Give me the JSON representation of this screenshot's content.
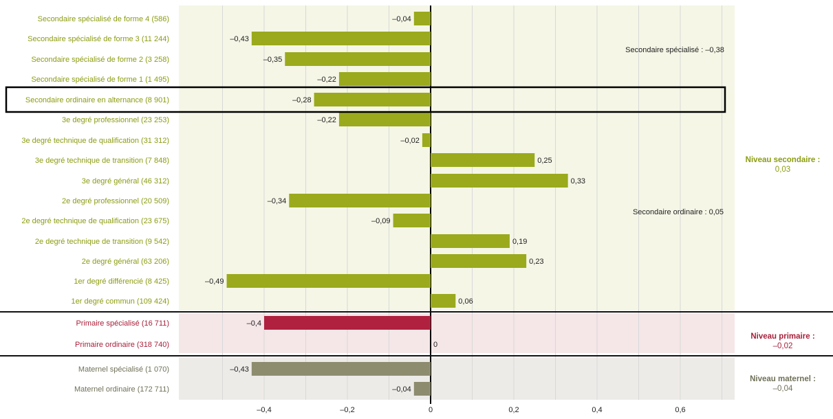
{
  "chart_data": {
    "type": "bar",
    "orientation": "horizontal",
    "xlim": [
      -0.5,
      0.72
    ],
    "x_ticks": [
      {
        "value": -0.4,
        "label": "–0,4"
      },
      {
        "value": -0.2,
        "label": "–0,2"
      },
      {
        "value": 0,
        "label": "0"
      },
      {
        "value": 0.2,
        "label": "0,2"
      },
      {
        "value": 0.4,
        "label": "0,4"
      },
      {
        "value": 0.6,
        "label": "0,6"
      }
    ],
    "grid": true,
    "categories": [
      "Secondaire spécialisé de forme 4 (586)",
      "Secondaire spécialisé de forme 3 (11 244)",
      "Secondaire spécialisé de forme 2 (3 258)",
      "Secondaire spécialisé de forme 1 (1 495)",
      "Secondaire ordinaire en alternance (8 901)",
      "3e degré professionnel (23 253)",
      "3e degré technique de qualification (31 312)",
      "3e degré technique de transition (7 848)",
      "3e degré général (46 312)",
      "2e degré professionnel (20 509)",
      "2e degré technique de qualification (23 675)",
      "2e degré technique de transition (9 542)",
      "2e degré général (63 206)",
      "1er degré différencié (8 425)",
      "1er degré commun (109 424)",
      "Primaire spécialisé (16 711)",
      "Primaire ordinaire (318 740)",
      "Maternel spécialisé (1 070)",
      "Maternel ordinaire (172 711)"
    ],
    "values": [
      -0.04,
      -0.43,
      -0.35,
      -0.22,
      -0.28,
      -0.22,
      -0.02,
      0.25,
      0.33,
      -0.34,
      -0.09,
      0.19,
      0.23,
      -0.49,
      0.06,
      -0.4,
      0,
      -0.43,
      -0.04
    ],
    "value_labels": [
      "–0,04",
      "–0,43",
      "–0,35",
      "–0,22",
      "–0,28",
      "–0,22",
      "–0,02",
      "0,25",
      "0,33",
      "–0,34",
      "–0,09",
      "0,19",
      "0,23",
      "–0,49",
      "0,06",
      "–0,4",
      "0",
      "–0,43",
      "–0,04"
    ],
    "groups": [
      {
        "key": "secondaire",
        "label": "Niveau secondaire :",
        "value": "0,03",
        "color": "#9aaa1c",
        "band_color": "#f5f6e6",
        "bar_color": "#9aaa1c",
        "text_color": "#8c9c10",
        "rows": [
          0,
          14
        ]
      },
      {
        "key": "primaire",
        "label": "Niveau primaire :",
        "value": "–0,02",
        "color": "#b0213f",
        "band_color": "#f5e6e8",
        "bar_color": "#b0213f",
        "text_color": "#a8203a",
        "rows": [
          15,
          16
        ]
      },
      {
        "key": "maternel",
        "label": "Niveau maternel :",
        "value": "–0,04",
        "color": "#8a8a6c",
        "band_color": "#edebe8",
        "bar_color": "#8d8c6f",
        "text_color": "#707058",
        "rows": [
          17,
          18
        ]
      }
    ],
    "annotations": [
      {
        "text": "Secondaire spécialisé : –0,38",
        "row": 1
      },
      {
        "text": "Secondaire ordinaire : 0,05",
        "row": 9
      }
    ],
    "highlighted_row": 4
  }
}
